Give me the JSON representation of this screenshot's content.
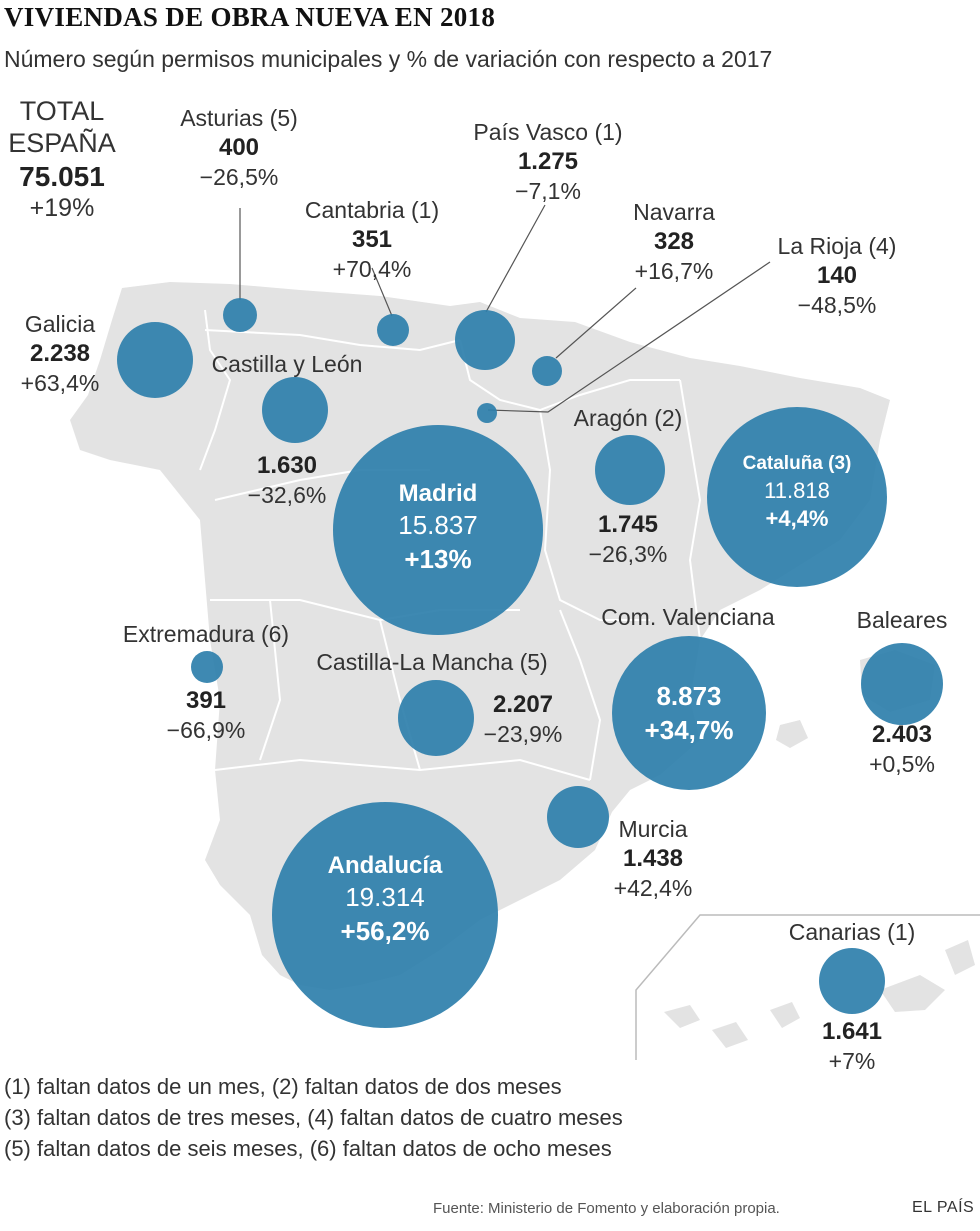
{
  "title": "VIVIENDAS DE OBRA NUEVA EN 2018",
  "subtitle": "Número según permisos municipales y % de variación con respecto a 2017",
  "total": {
    "name_line1": "TOTAL",
    "name_line2": "ESPAÑA",
    "value": "75.051",
    "change": "+19%"
  },
  "regions": [
    {
      "id": "asturias",
      "name": "Asturias (5)",
      "value": "400",
      "change": "−26,5%"
    },
    {
      "id": "cantabria",
      "name": "Cantabria (1)",
      "value": "351",
      "change": "+70,4%"
    },
    {
      "id": "pais-vasco",
      "name": "País Vasco (1)",
      "value": "1.275",
      "change": "−7,1%"
    },
    {
      "id": "navarra",
      "name": "Navarra",
      "value": "328",
      "change": "+16,7%"
    },
    {
      "id": "la-rioja",
      "name": "La Rioja (4)",
      "value": "140",
      "change": "−48,5%"
    },
    {
      "id": "galicia",
      "name": "Galicia",
      "value": "2.238",
      "change": "+63,4%"
    },
    {
      "id": "castilla-leon",
      "name": "Castilla y León",
      "value": "1.630",
      "change": "−32,6%"
    },
    {
      "id": "aragon",
      "name": "Aragón (2)",
      "value": "1.745",
      "change": "−26,3%"
    },
    {
      "id": "cataluna",
      "name": "Cataluña (3)",
      "value": "11.818",
      "change": "+4,4%"
    },
    {
      "id": "madrid",
      "name": "Madrid",
      "value": "15.837",
      "change": "+13%"
    },
    {
      "id": "extremadura",
      "name": "Extremadura (6)",
      "value": "391",
      "change": "−66,9%"
    },
    {
      "id": "castilla-la-mancha",
      "name": "Castilla-La Mancha (5)",
      "value": "2.207",
      "change": "−23,9%"
    },
    {
      "id": "valenciana",
      "name": "Com. Valenciana",
      "value": "8.873",
      "change": "+34,7%"
    },
    {
      "id": "baleares",
      "name": "Baleares",
      "value": "2.403",
      "change": "+0,5%"
    },
    {
      "id": "murcia",
      "name": "Murcia",
      "value": "1.438",
      "change": "+42,4%"
    },
    {
      "id": "andalucia",
      "name": "Andalucía",
      "value": "19.314",
      "change": "+56,2%"
    },
    {
      "id": "canarias",
      "name": "Canarias (1)",
      "value": "1.641",
      "change": "+7%"
    }
  ],
  "notes": [
    "(1) faltan datos de un mes, (2) faltan datos de dos meses",
    "(3) faltan datos de tres meses, (4) faltan datos de cuatro meses",
    "(5) faltan datos de seis meses, (6) faltan datos de ocho meses"
  ],
  "source": "Fuente: Ministerio de Fomento y elaboración propia.",
  "brand": "EL PAÍS",
  "colors": {
    "bubble": "#2e7fab",
    "land": "#e3e3e3",
    "border": "#ffffff",
    "leader": "#555555"
  }
}
